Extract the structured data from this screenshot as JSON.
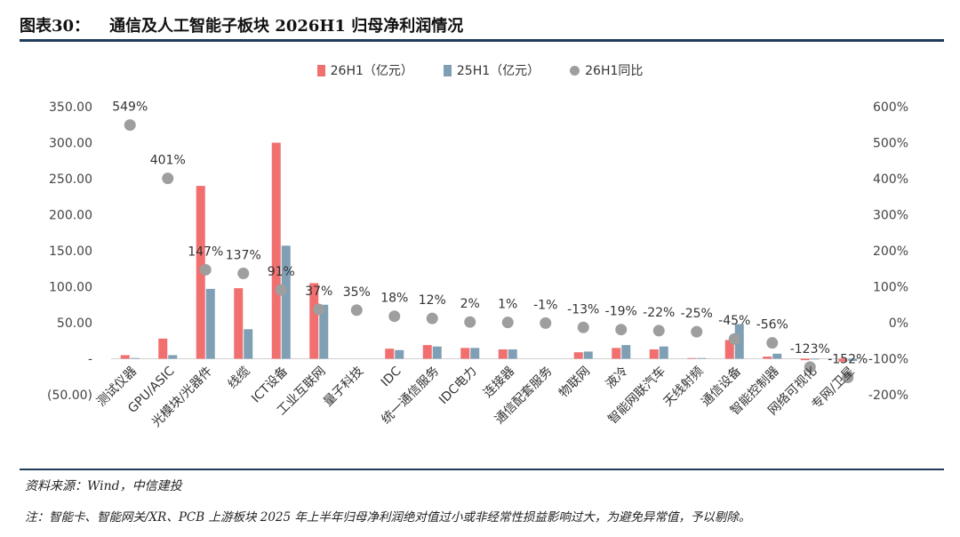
{
  "figure": {
    "label": "图表30：",
    "title": "通信及人工智能子板块 2026H1 归母净利润情况",
    "source": "资料来源：Wind，中信建投",
    "note": "注：智能卡、智能网关/XR、PCB 上游板块 2025 年上半年归母净利润绝对值过小或非经常性损益影响过大，为避免异常值，予以剔除。"
  },
  "chart_data": {
    "type": "bar",
    "categories": [
      "测试仪器",
      "GPU/ASIC",
      "光模块/光器件",
      "线缆",
      "ICT设备",
      "工业互联网",
      "量子科技",
      "IDC",
      "统一通信服务",
      "IDC电力",
      "连接器",
      "通信配套服务",
      "物联网",
      "液冷",
      "智能网联汽车",
      "天线射频",
      "通信设备",
      "智能控制器",
      "网络可视化",
      "专网/卫星"
    ],
    "series": [
      {
        "name": "26H1（亿元）",
        "axis": "left",
        "color": "#f26f6f",
        "values": [
          5,
          28,
          240,
          98,
          300,
          105,
          0,
          14,
          19,
          15,
          13,
          0,
          9,
          15,
          13,
          1,
          26,
          3,
          -2,
          -4
        ]
      },
      {
        "name": "25H1（亿元）",
        "axis": "left",
        "color": "#7f9fb5",
        "values": [
          1,
          5,
          97,
          41,
          157,
          75,
          0,
          12,
          17,
          15,
          13,
          0,
          10,
          19,
          17,
          1,
          48,
          7,
          -1,
          -3
        ]
      },
      {
        "name": "26H1同比",
        "type": "scatter",
        "axis": "right",
        "color": "#9e9e9e",
        "values": [
          549,
          401,
          147,
          137,
          91,
          37,
          35,
          18,
          12,
          2,
          1,
          -1,
          -13,
          -19,
          -22,
          -25,
          -45,
          -56,
          -123,
          -152
        ],
        "labels": [
          "549%",
          "401%",
          "147%",
          "137%",
          "91%",
          "37%",
          "35%",
          "18%",
          "12%",
          "2%",
          "1%",
          "-1%",
          "-13%",
          "-19%",
          "-22%",
          "-25%",
          "-45%",
          "-56%",
          "-123%",
          "-152%"
        ]
      }
    ],
    "left_axis": {
      "ticks": [
        350,
        300,
        250,
        200,
        150,
        100,
        50,
        0,
        -50
      ],
      "tick_labels": [
        "350.00",
        "300.00",
        "250.00",
        "200.00",
        "150.00",
        "100.00",
        "50.00",
        "-",
        "(50.00)"
      ],
      "ylim": [
        -50,
        350
      ]
    },
    "right_axis": {
      "ticks": [
        600,
        500,
        400,
        300,
        200,
        100,
        0,
        -100,
        -200
      ],
      "tick_labels": [
        "600%",
        "500%",
        "400%",
        "300%",
        "200%",
        "100%",
        "0%",
        "-100%",
        "-200%"
      ],
      "ylim": [
        -200,
        600
      ]
    },
    "grid": false,
    "legend_position": "top-center"
  }
}
